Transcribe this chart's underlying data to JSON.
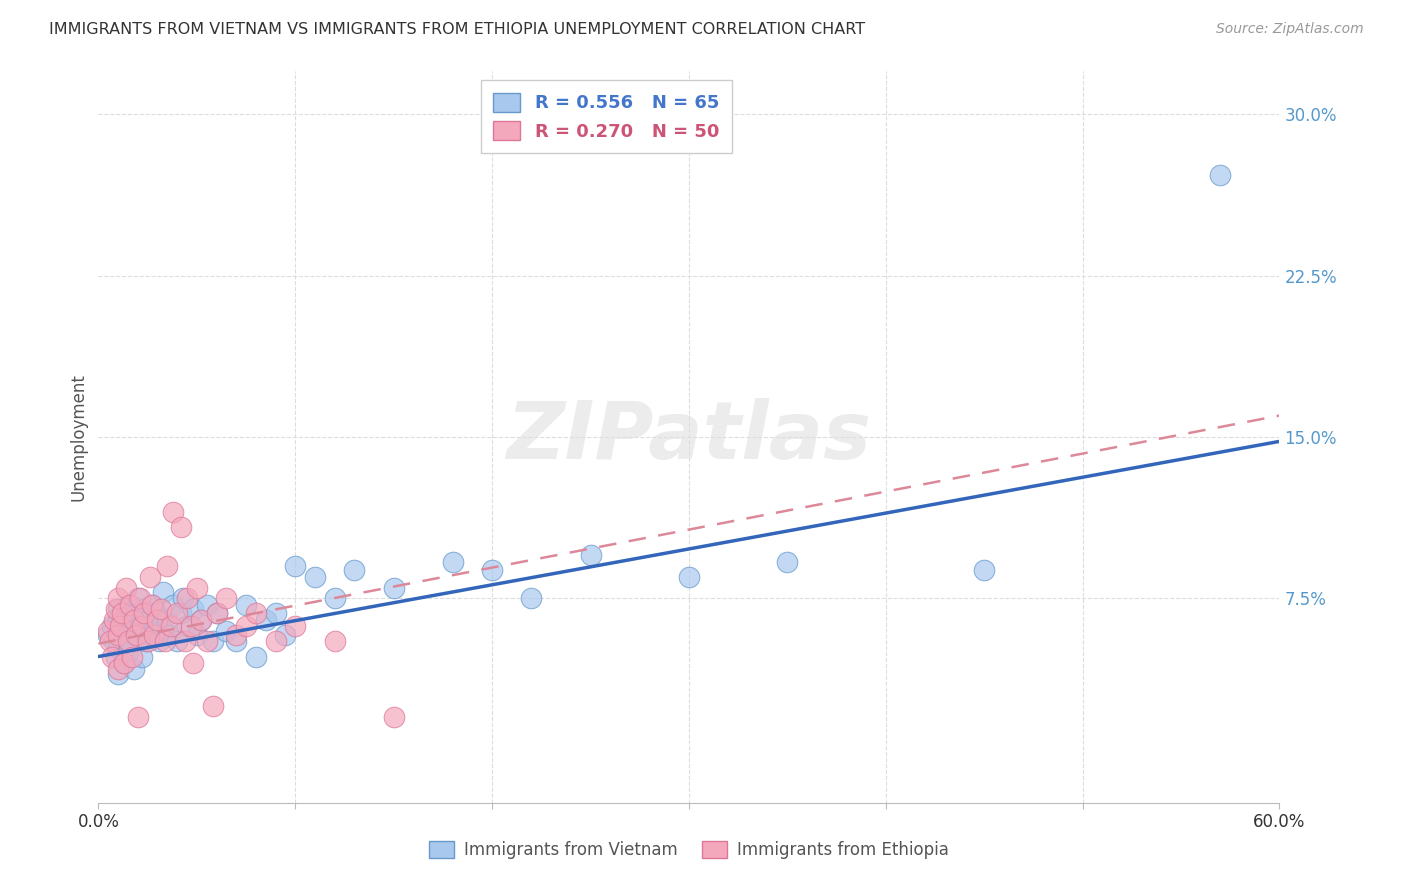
{
  "title": "IMMIGRANTS FROM VIETNAM VS IMMIGRANTS FROM ETHIOPIA UNEMPLOYMENT CORRELATION CHART",
  "source": "Source: ZipAtlas.com",
  "ylabel": "Unemployment",
  "xlim": [
    0.0,
    0.6
  ],
  "ylim": [
    -0.02,
    0.32
  ],
  "yticks": [
    0.075,
    0.15,
    0.225,
    0.3
  ],
  "ytick_labels": [
    "7.5%",
    "15.0%",
    "22.5%",
    "30.0%"
  ],
  "vietnam_color": "#A8C8EE",
  "ethiopia_color": "#F4A8BC",
  "vietnam_edge": "#6699CC",
  "ethiopia_edge": "#DD7799",
  "vietnam_R": 0.556,
  "vietnam_N": 65,
  "ethiopia_R": 0.27,
  "ethiopia_N": 50,
  "vietnam_line_color": "#3366BB",
  "ethiopia_line_color": "#DD8899",
  "vietnam_label_color": "#4477CC",
  "ethiopia_label_color": "#CC5577",
  "background_color": "#FFFFFF",
  "grid_color": "#DDDDDD",
  "ytick_color": "#5599CC",
  "vietnam_line_start_y": 0.048,
  "vietnam_line_end_y": 0.148,
  "ethiopia_line_start_y": 0.054,
  "ethiopia_line_end_y": 0.16,
  "vietnam_scatter_x": [
    0.005,
    0.007,
    0.008,
    0.009,
    0.01,
    0.01,
    0.01,
    0.01,
    0.011,
    0.012,
    0.013,
    0.014,
    0.015,
    0.015,
    0.016,
    0.017,
    0.018,
    0.019,
    0.02,
    0.02,
    0.021,
    0.022,
    0.023,
    0.024,
    0.025,
    0.026,
    0.027,
    0.028,
    0.03,
    0.031,
    0.032,
    0.033,
    0.035,
    0.036,
    0.038,
    0.04,
    0.042,
    0.043,
    0.045,
    0.048,
    0.05,
    0.052,
    0.055,
    0.058,
    0.06,
    0.065,
    0.07,
    0.075,
    0.08,
    0.085,
    0.09,
    0.095,
    0.1,
    0.11,
    0.12,
    0.13,
    0.15,
    0.18,
    0.2,
    0.22,
    0.25,
    0.3,
    0.35,
    0.45,
    0.57
  ],
  "vietnam_scatter_y": [
    0.058,
    0.062,
    0.055,
    0.048,
    0.065,
    0.07,
    0.04,
    0.052,
    0.06,
    0.068,
    0.045,
    0.058,
    0.072,
    0.05,
    0.055,
    0.063,
    0.042,
    0.068,
    0.058,
    0.075,
    0.062,
    0.048,
    0.07,
    0.055,
    0.065,
    0.058,
    0.072,
    0.06,
    0.068,
    0.055,
    0.062,
    0.078,
    0.065,
    0.058,
    0.072,
    0.055,
    0.068,
    0.075,
    0.062,
    0.07,
    0.058,
    0.065,
    0.072,
    0.055,
    0.068,
    0.06,
    0.055,
    0.072,
    0.048,
    0.065,
    0.068,
    0.058,
    0.09,
    0.085,
    0.075,
    0.088,
    0.08,
    0.092,
    0.088,
    0.075,
    0.095,
    0.085,
    0.092,
    0.088,
    0.272
  ],
  "ethiopia_scatter_x": [
    0.005,
    0.006,
    0.007,
    0.008,
    0.009,
    0.01,
    0.01,
    0.01,
    0.011,
    0.012,
    0.013,
    0.014,
    0.015,
    0.016,
    0.017,
    0.018,
    0.019,
    0.02,
    0.021,
    0.022,
    0.023,
    0.025,
    0.026,
    0.027,
    0.028,
    0.03,
    0.032,
    0.034,
    0.035,
    0.037,
    0.038,
    0.04,
    0.042,
    0.044,
    0.045,
    0.047,
    0.048,
    0.05,
    0.052,
    0.055,
    0.058,
    0.06,
    0.065,
    0.07,
    0.075,
    0.08,
    0.09,
    0.1,
    0.12,
    0.15
  ],
  "ethiopia_scatter_y": [
    0.06,
    0.055,
    0.048,
    0.065,
    0.07,
    0.042,
    0.058,
    0.075,
    0.062,
    0.068,
    0.045,
    0.08,
    0.055,
    0.072,
    0.048,
    0.065,
    0.058,
    0.02,
    0.075,
    0.062,
    0.068,
    0.055,
    0.085,
    0.072,
    0.058,
    0.065,
    0.07,
    0.055,
    0.09,
    0.062,
    0.115,
    0.068,
    0.108,
    0.055,
    0.075,
    0.062,
    0.045,
    0.08,
    0.065,
    0.055,
    0.025,
    0.068,
    0.075,
    0.058,
    0.062,
    0.068,
    0.055,
    0.062,
    0.055,
    0.02
  ]
}
